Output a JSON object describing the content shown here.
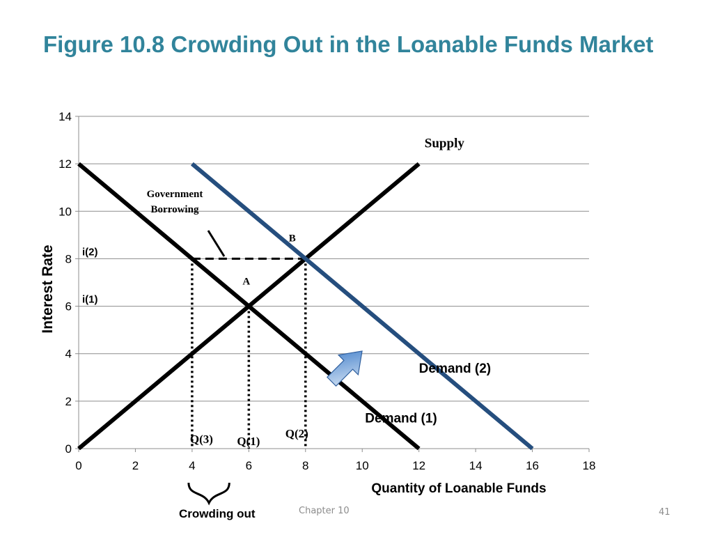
{
  "slide": {
    "title": "Figure 10.8 Crowding Out in the Loanable Funds Market",
    "footer_chapter": "Chapter 10",
    "page_number": "41",
    "crowding_out_label": "Crowding out"
  },
  "chart_data": {
    "type": "line",
    "title": "",
    "xlabel": "Quantity of Loanable Funds",
    "ylabel": "Interest Rate",
    "xlim": [
      0,
      18
    ],
    "ylim": [
      0,
      14
    ],
    "xticks": [
      0,
      2,
      4,
      6,
      8,
      10,
      12,
      14,
      16,
      18
    ],
    "yticks": [
      0,
      2,
      4,
      6,
      8,
      10,
      12,
      14
    ],
    "grid": "horizontal",
    "series": [
      {
        "name": "Supply",
        "color": "#000000",
        "points": [
          [
            0,
            0
          ],
          [
            12,
            12
          ]
        ]
      },
      {
        "name": "Demand (1)",
        "color": "#000000",
        "points": [
          [
            0,
            12
          ],
          [
            12,
            0
          ]
        ]
      },
      {
        "name": "Demand (2)",
        "color": "#254e7e",
        "points": [
          [
            4,
            12
          ],
          [
            16,
            0
          ]
        ]
      }
    ],
    "series_labels": [
      {
        "text": "Supply",
        "x": 12.2,
        "y": 12.7,
        "style": "serif"
      },
      {
        "text": "Demand (2)",
        "x": 12.0,
        "y": 3.2,
        "style": "sans"
      },
      {
        "text": "Demand (1)",
        "x": 10.1,
        "y": 1.1,
        "style": "sans"
      }
    ],
    "points": [
      {
        "label": "A",
        "x": 6,
        "y": 6
      },
      {
        "label": "B",
        "x": 8,
        "y": 8
      }
    ],
    "rate_labels": [
      {
        "text": "i(2)",
        "y": 8
      },
      {
        "text": "i(1)",
        "y": 6
      }
    ],
    "quantity_labels": [
      {
        "text": "Q(3)",
        "x": 4
      },
      {
        "text": "Q(1)",
        "x": 6
      },
      {
        "text": "Q(2)",
        "x": 8
      }
    ],
    "annotations": {
      "government_borrowing": [
        "Government",
        "Borrowing"
      ]
    },
    "shift_arrow_color": "#3d7cc9"
  }
}
